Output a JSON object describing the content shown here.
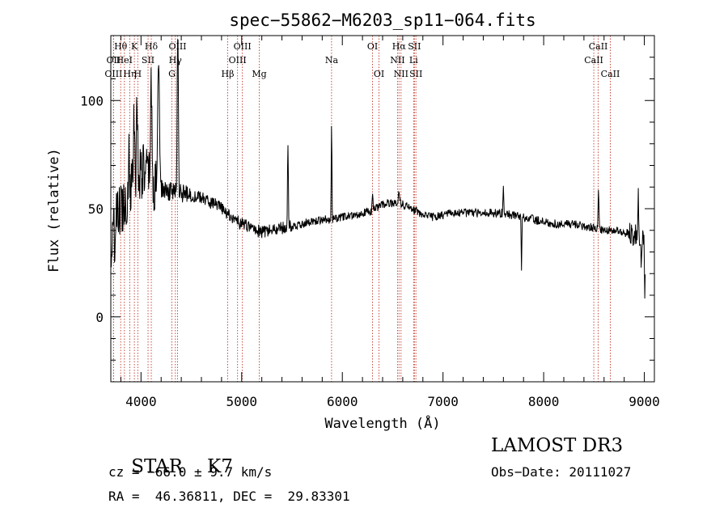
{
  "chart_data": {
    "type": "line",
    "title": "spec−55862−M6203_sp11−064.fits",
    "xlabel": "Wavelength (Å)",
    "ylabel": "Flux (relative)",
    "xlim": [
      3700,
      9100
    ],
    "ylim": [
      -30,
      130
    ],
    "xticks": [
      {
        "v": 4000,
        "label": "4000"
      },
      {
        "v": 5000,
        "label": "5000"
      },
      {
        "v": 6000,
        "label": "6000"
      },
      {
        "v": 7000,
        "label": "7000"
      },
      {
        "v": 8000,
        "label": "8000"
      },
      {
        "v": 9000,
        "label": "9000"
      }
    ],
    "yticks": [
      {
        "v": 0,
        "label": "0"
      },
      {
        "v": 50,
        "label": "50"
      },
      {
        "v": 100,
        "label": "100"
      }
    ],
    "lines": [
      {
        "name": "Hθ",
        "wave": 3798,
        "row": 0
      },
      {
        "name": "OII",
        "wave": 3727,
        "row": 1
      },
      {
        "name": "OIII",
        "wave": 3727,
        "row": 2
      },
      {
        "name": "HeI",
        "wave": 3835,
        "row": 1
      },
      {
        "name": "Hη",
        "wave": 3889,
        "row": 2
      },
      {
        "name": "K",
        "wave": 3934,
        "row": 0
      },
      {
        "name": "H",
        "wave": 3968,
        "row": 2
      },
      {
        "name": "SII",
        "wave": 4070,
        "row": 1
      },
      {
        "name": "Hδ",
        "wave": 4102,
        "row": 0
      },
      {
        "name": "OIII",
        "wave": 4363,
        "row": 0
      },
      {
        "name": "Hγ",
        "wave": 4341,
        "row": 1
      },
      {
        "name": "G",
        "wave": 4307,
        "row": 2
      },
      {
        "name": "Hβ",
        "wave": 4861,
        "row": 2
      },
      {
        "name": "OIII",
        "wave": 5007,
        "row": 0
      },
      {
        "name": "OIII",
        "wave": 4959,
        "row": 1
      },
      {
        "name": "Mg",
        "wave": 5175,
        "row": 2
      },
      {
        "name": "Na",
        "wave": 5893,
        "row": 1
      },
      {
        "name": "OI",
        "wave": 6300,
        "row": 0
      },
      {
        "name": "OI",
        "wave": 6364,
        "row": 2
      },
      {
        "name": "Hα",
        "wave": 6563,
        "row": 0
      },
      {
        "name": "NII",
        "wave": 6548,
        "row": 1
      },
      {
        "name": "NII",
        "wave": 6583,
        "row": 2
      },
      {
        "name": "SII",
        "wave": 6716,
        "row": 0
      },
      {
        "name": "Li",
        "wave": 6708,
        "row": 1
      },
      {
        "name": "SII",
        "wave": 6731,
        "row": 2
      },
      {
        "name": "CaII",
        "wave": 8542,
        "row": 0
      },
      {
        "name": "CaII",
        "wave": 8498,
        "row": 1
      },
      {
        "name": "CaII",
        "wave": 8662,
        "row": 2
      }
    ],
    "spectrum_knots": [
      [
        3700,
        30
      ],
      [
        3760,
        45
      ],
      [
        3800,
        50
      ],
      [
        3850,
        55
      ],
      [
        3900,
        60
      ],
      [
        3950,
        65
      ],
      [
        4000,
        68
      ],
      [
        4050,
        66
      ],
      [
        4100,
        62
      ],
      [
        4150,
        60
      ],
      [
        4200,
        59
      ],
      [
        4300,
        58
      ],
      [
        4400,
        57
      ],
      [
        4500,
        56
      ],
      [
        4600,
        55
      ],
      [
        4700,
        53
      ],
      [
        4800,
        50
      ],
      [
        4900,
        46
      ],
      [
        5000,
        43
      ],
      [
        5100,
        41
      ],
      [
        5200,
        39
      ],
      [
        5300,
        40
      ],
      [
        5400,
        41
      ],
      [
        5500,
        42
      ],
      [
        5600,
        43
      ],
      [
        5700,
        44
      ],
      [
        5800,
        45
      ],
      [
        5900,
        45
      ],
      [
        6000,
        46
      ],
      [
        6100,
        47
      ],
      [
        6200,
        48
      ],
      [
        6300,
        49
      ],
      [
        6400,
        52
      ],
      [
        6500,
        53
      ],
      [
        6600,
        52
      ],
      [
        6700,
        50
      ],
      [
        6800,
        47
      ],
      [
        6900,
        46
      ],
      [
        7000,
        47
      ],
      [
        7100,
        48
      ],
      [
        7200,
        48
      ],
      [
        7300,
        48
      ],
      [
        7400,
        48
      ],
      [
        7500,
        48
      ],
      [
        7600,
        48
      ],
      [
        7700,
        47
      ],
      [
        7800,
        46
      ],
      [
        7900,
        45
      ],
      [
        8000,
        44
      ],
      [
        8100,
        43
      ],
      [
        8200,
        43
      ],
      [
        8300,
        43
      ],
      [
        8400,
        42
      ],
      [
        8500,
        41
      ],
      [
        8600,
        40
      ],
      [
        8700,
        40
      ],
      [
        8800,
        39
      ],
      [
        8900,
        38
      ],
      [
        9000,
        36
      ]
    ],
    "spectrum_features": [
      [
        4365,
        82,
        8
      ],
      [
        4175,
        60,
        12
      ],
      [
        4100,
        46,
        10
      ],
      [
        3960,
        36,
        8
      ],
      [
        3930,
        28,
        8
      ],
      [
        3880,
        24,
        6
      ],
      [
        5460,
        40,
        6
      ],
      [
        5893,
        45,
        5
      ],
      [
        6563,
        6,
        8
      ],
      [
        6300,
        8,
        5
      ],
      [
        7780,
        -25,
        5
      ],
      [
        7600,
        12,
        5
      ],
      [
        8545,
        18,
        6
      ],
      [
        8940,
        18,
        6
      ],
      [
        8970,
        -12,
        8
      ],
      [
        9005,
        -24,
        6
      ]
    ]
  },
  "info": {
    "class_label": "STAR",
    "subclass_label": "K7",
    "survey": "LAMOST DR3",
    "redshift_line": "cz = −66.0 ± 9.7 km/s",
    "obs_date": "Obs−Date: 20111027",
    "coords_line": "RA =  46.36811, DEC =  29.83301"
  }
}
